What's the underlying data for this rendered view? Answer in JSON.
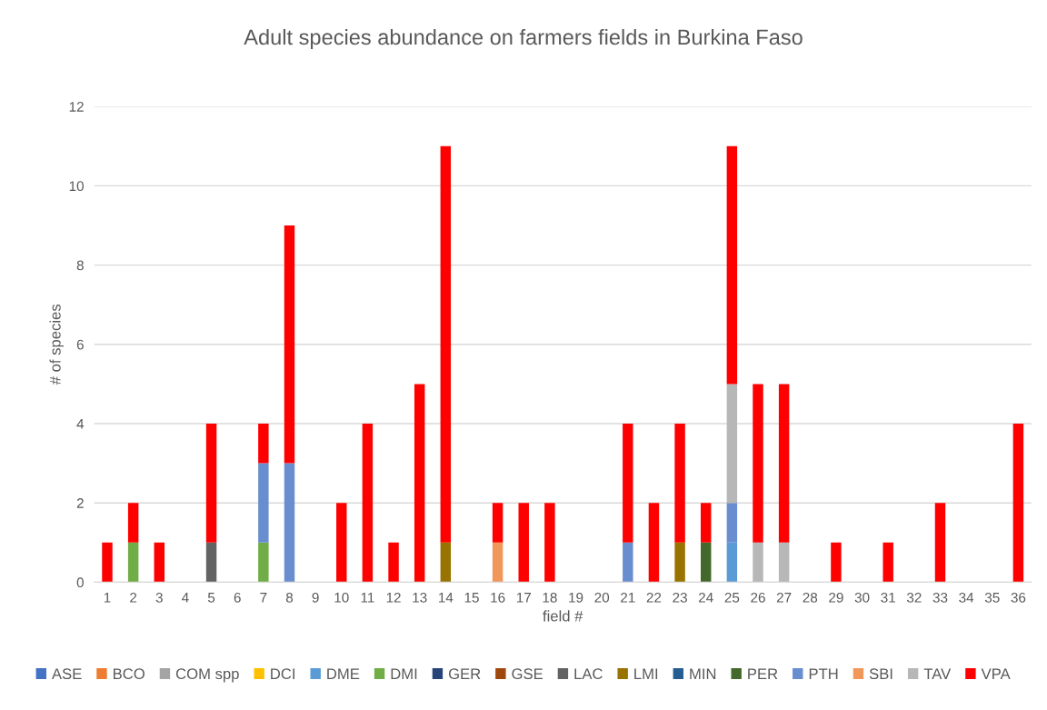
{
  "chart_data": {
    "type": "bar",
    "stacked": true,
    "title": "Adult species abundance on farmers fields in Burkina Faso",
    "xlabel": "field #",
    "ylabel": "# of species",
    "categories": [
      "1",
      "2",
      "3",
      "4",
      "5",
      "6",
      "7",
      "8",
      "9",
      "10",
      "11",
      "12",
      "13",
      "14",
      "15",
      "16",
      "17",
      "18",
      "19",
      "20",
      "21",
      "22",
      "23",
      "24",
      "25",
      "26",
      "27",
      "28",
      "29",
      "30",
      "31",
      "32",
      "33",
      "34",
      "35",
      "36"
    ],
    "ylim": [
      0,
      12
    ],
    "yticks": [
      0,
      2,
      4,
      6,
      8,
      10,
      12
    ],
    "grid": "y",
    "legend": "bottom",
    "series": [
      {
        "name": "ASE",
        "color": "#4472c4",
        "values": [
          null,
          null,
          null,
          null,
          null,
          null,
          null,
          null,
          null,
          null,
          null,
          null,
          null,
          null,
          null,
          null,
          null,
          null,
          null,
          null,
          null,
          null,
          null,
          null,
          null,
          null,
          null,
          null,
          null,
          null,
          null,
          null,
          null,
          null,
          null,
          null
        ]
      },
      {
        "name": "BCO",
        "color": "#ed7d31",
        "values": [
          null,
          null,
          null,
          null,
          null,
          null,
          null,
          null,
          null,
          null,
          null,
          null,
          null,
          null,
          null,
          null,
          null,
          null,
          null,
          null,
          null,
          null,
          null,
          null,
          null,
          null,
          null,
          null,
          null,
          null,
          null,
          null,
          null,
          null,
          null,
          null
        ]
      },
      {
        "name": "COM spp",
        "color": "#a5a5a5",
        "values": [
          null,
          null,
          null,
          null,
          null,
          null,
          null,
          null,
          null,
          null,
          null,
          null,
          null,
          null,
          null,
          null,
          null,
          null,
          null,
          null,
          null,
          null,
          null,
          null,
          null,
          null,
          null,
          null,
          null,
          null,
          null,
          null,
          null,
          null,
          null,
          null
        ]
      },
      {
        "name": "DCI",
        "color": "#ffc000",
        "values": [
          null,
          null,
          null,
          null,
          null,
          null,
          null,
          null,
          null,
          null,
          null,
          null,
          null,
          null,
          null,
          null,
          null,
          null,
          null,
          null,
          null,
          null,
          null,
          null,
          null,
          null,
          null,
          null,
          null,
          null,
          null,
          null,
          null,
          null,
          null,
          null
        ]
      },
      {
        "name": "DME",
        "color": "#5b9bd5",
        "values": [
          null,
          null,
          null,
          null,
          null,
          null,
          null,
          null,
          null,
          null,
          null,
          null,
          null,
          null,
          null,
          null,
          null,
          null,
          null,
          null,
          null,
          null,
          null,
          null,
          1,
          null,
          null,
          null,
          null,
          null,
          null,
          null,
          null,
          null,
          null,
          null
        ]
      },
      {
        "name": "DMI",
        "color": "#70ad47",
        "values": [
          null,
          1,
          null,
          null,
          null,
          null,
          1,
          null,
          null,
          null,
          null,
          null,
          null,
          null,
          null,
          null,
          null,
          null,
          null,
          null,
          null,
          null,
          null,
          null,
          null,
          null,
          null,
          null,
          null,
          null,
          null,
          null,
          null,
          null,
          null,
          null
        ]
      },
      {
        "name": "GER",
        "color": "#264478",
        "values": [
          null,
          null,
          null,
          null,
          null,
          null,
          null,
          null,
          null,
          null,
          null,
          null,
          null,
          null,
          null,
          null,
          null,
          null,
          null,
          null,
          null,
          null,
          null,
          null,
          null,
          null,
          null,
          null,
          null,
          null,
          null,
          null,
          null,
          null,
          null,
          null
        ]
      },
      {
        "name": "GSE",
        "color": "#9e480e",
        "values": [
          null,
          null,
          null,
          null,
          null,
          null,
          null,
          null,
          null,
          null,
          null,
          null,
          null,
          null,
          null,
          null,
          null,
          null,
          null,
          null,
          null,
          null,
          null,
          null,
          null,
          null,
          null,
          null,
          null,
          null,
          null,
          null,
          null,
          null,
          null,
          null
        ]
      },
      {
        "name": "LAC",
        "color": "#636363",
        "values": [
          null,
          null,
          null,
          null,
          1,
          null,
          null,
          null,
          null,
          null,
          null,
          null,
          null,
          null,
          null,
          null,
          null,
          null,
          null,
          null,
          null,
          null,
          null,
          null,
          null,
          null,
          null,
          null,
          null,
          null,
          null,
          null,
          null,
          null,
          null,
          null
        ]
      },
      {
        "name": "LMI",
        "color": "#997300",
        "values": [
          null,
          null,
          null,
          null,
          null,
          null,
          null,
          null,
          null,
          null,
          null,
          null,
          null,
          1,
          null,
          null,
          null,
          null,
          null,
          null,
          null,
          null,
          1,
          null,
          null,
          null,
          null,
          null,
          null,
          null,
          null,
          null,
          null,
          null,
          null,
          null
        ]
      },
      {
        "name": "MIN",
        "color": "#255e91",
        "values": [
          null,
          null,
          null,
          null,
          null,
          null,
          null,
          null,
          null,
          null,
          null,
          null,
          null,
          null,
          null,
          null,
          null,
          null,
          null,
          null,
          null,
          null,
          null,
          null,
          null,
          null,
          null,
          null,
          null,
          null,
          null,
          null,
          null,
          null,
          null,
          null
        ]
      },
      {
        "name": "PER",
        "color": "#43682b",
        "values": [
          null,
          null,
          null,
          null,
          null,
          null,
          null,
          null,
          null,
          null,
          null,
          null,
          null,
          null,
          null,
          null,
          null,
          null,
          null,
          null,
          null,
          null,
          null,
          1,
          null,
          null,
          null,
          null,
          null,
          null,
          null,
          null,
          null,
          null,
          null,
          null
        ]
      },
      {
        "name": "PTH",
        "color": "#698ed0",
        "values": [
          null,
          null,
          null,
          null,
          null,
          null,
          2,
          3,
          null,
          null,
          null,
          null,
          null,
          null,
          null,
          null,
          null,
          null,
          null,
          null,
          1,
          null,
          null,
          null,
          1,
          null,
          null,
          null,
          null,
          null,
          null,
          null,
          null,
          null,
          null,
          null
        ]
      },
      {
        "name": "SBI",
        "color": "#f1975a",
        "values": [
          null,
          null,
          null,
          null,
          null,
          null,
          null,
          null,
          null,
          null,
          null,
          null,
          null,
          null,
          null,
          1,
          null,
          null,
          null,
          null,
          null,
          null,
          null,
          null,
          null,
          null,
          null,
          null,
          null,
          null,
          null,
          null,
          null,
          null,
          null,
          null
        ]
      },
      {
        "name": "TAV",
        "color": "#b7b7b7",
        "values": [
          null,
          null,
          null,
          null,
          null,
          null,
          null,
          null,
          null,
          null,
          null,
          null,
          null,
          null,
          null,
          null,
          null,
          null,
          null,
          null,
          null,
          null,
          null,
          null,
          3,
          1,
          1,
          null,
          null,
          null,
          null,
          null,
          null,
          null,
          null,
          null
        ]
      },
      {
        "name": "VPA",
        "color": "#ff0000",
        "values": [
          1,
          1,
          1,
          null,
          3,
          null,
          1,
          6,
          null,
          2,
          4,
          1,
          5,
          10,
          null,
          1,
          2,
          2,
          null,
          null,
          3,
          2,
          3,
          1,
          6,
          4,
          4,
          null,
          1,
          null,
          1,
          null,
          2,
          null,
          null,
          4
        ]
      }
    ]
  }
}
